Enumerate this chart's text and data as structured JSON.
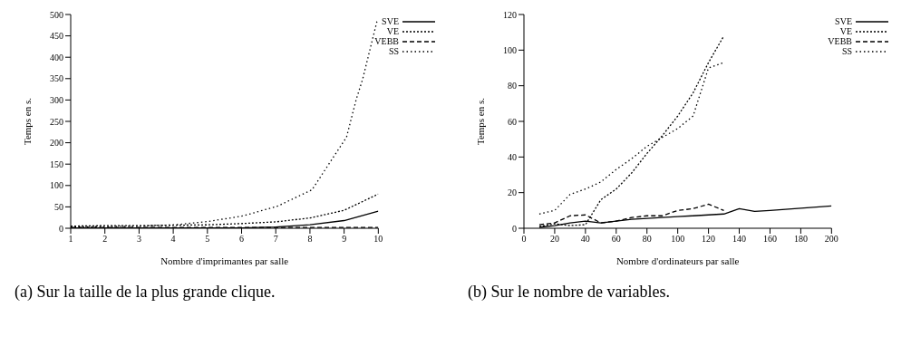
{
  "chart_data": [
    {
      "type": "line",
      "xlabel": "Nombre d'imprimantes par salle",
      "ylabel": "Temps en s.",
      "annotations": [
        "(a) Sur la taille de la plus grande clique."
      ],
      "x": [
        1,
        2,
        3,
        4,
        5,
        6,
        7,
        8,
        9,
        10
      ],
      "xlim": [
        1,
        10
      ],
      "xticks": [
        1,
        2,
        3,
        4,
        5,
        6,
        7,
        8,
        9,
        10
      ],
      "ylim": [
        0,
        500
      ],
      "yticks": [
        0,
        50,
        100,
        150,
        200,
        250,
        300,
        350,
        400,
        450,
        500
      ],
      "legend": "top right",
      "series": [
        {
          "name": "SVE",
          "color": "#000000",
          "line_style": "solid",
          "values": [
            1,
            1,
            1,
            1,
            1,
            1,
            3,
            8,
            18,
            40
          ]
        },
        {
          "name": "VE",
          "color": "#000000",
          "line_style": "dotted",
          "values": [
            5,
            6,
            6,
            7,
            8,
            11,
            15,
            24,
            42,
            80
          ]
        },
        {
          "name": "VEBB",
          "color": "#000000",
          "line_style": "dashed",
          "values": [
            2,
            2,
            2,
            2,
            2,
            2,
            2,
            2,
            2,
            2
          ]
        },
        {
          "name": "SS",
          "color": "#000000",
          "line_style": "sparse",
          "x": [
            1,
            2,
            3,
            4.04,
            5.04,
            6.05,
            7.06,
            8.06,
            9.07,
            9.36,
            9.54,
            9.75,
            9.97
          ],
          "values": [
            3,
            4,
            5,
            8,
            16,
            29,
            52,
            90,
            213,
            303,
            348,
            416,
            487
          ]
        }
      ]
    },
    {
      "type": "line",
      "xlabel": "Nombre d'ordinateurs par salle",
      "ylabel": "Temps en s.",
      "annotations": [
        "(b) Sur le nombre de variables."
      ],
      "xlim": [
        0,
        200
      ],
      "xticks": [
        0,
        20,
        40,
        60,
        80,
        100,
        120,
        140,
        160,
        180,
        200
      ],
      "ylim": [
        0,
        120
      ],
      "yticks": [
        0,
        20,
        40,
        60,
        80,
        100,
        120
      ],
      "legend": "top right",
      "series": [
        {
          "name": "SVE",
          "color": "#000000",
          "line_style": "solid",
          "x": [
            10,
            20,
            30,
            40,
            50,
            60,
            70,
            80,
            90,
            100,
            110,
            120,
            130,
            140,
            150,
            160,
            200
          ],
          "values": [
            0.5,
            1.5,
            3,
            4,
            3,
            4,
            5,
            5.5,
            6,
            6.5,
            7,
            7.5,
            8,
            11,
            9.5,
            10,
            12.5
          ]
        },
        {
          "name": "VE",
          "color": "#000000",
          "line_style": "dotted",
          "x": [
            10,
            20,
            30,
            40,
            50,
            60,
            70,
            80,
            90,
            100,
            110,
            120,
            130
          ],
          "values": [
            1,
            2.5,
            1.5,
            2,
            16,
            22,
            31,
            42,
            52,
            63,
            76,
            93,
            108
          ]
        },
        {
          "name": "VEBB",
          "color": "#000000",
          "line_style": "dashed",
          "x": [
            10,
            20,
            30,
            40,
            50,
            60,
            70,
            80,
            90,
            100,
            110,
            120,
            130
          ],
          "values": [
            2,
            3,
            7,
            7.5,
            3,
            4,
            6,
            7,
            7,
            10,
            11,
            13.5,
            10
          ]
        },
        {
          "name": "SS",
          "color": "#000000",
          "line_style": "sparse",
          "x": [
            10,
            20,
            30,
            40,
            50,
            60,
            70,
            80,
            90,
            100,
            110,
            120,
            130
          ],
          "values": [
            8,
            10,
            19,
            22,
            26,
            33,
            39,
            46,
            51,
            56,
            63,
            90,
            93
          ]
        }
      ]
    }
  ]
}
